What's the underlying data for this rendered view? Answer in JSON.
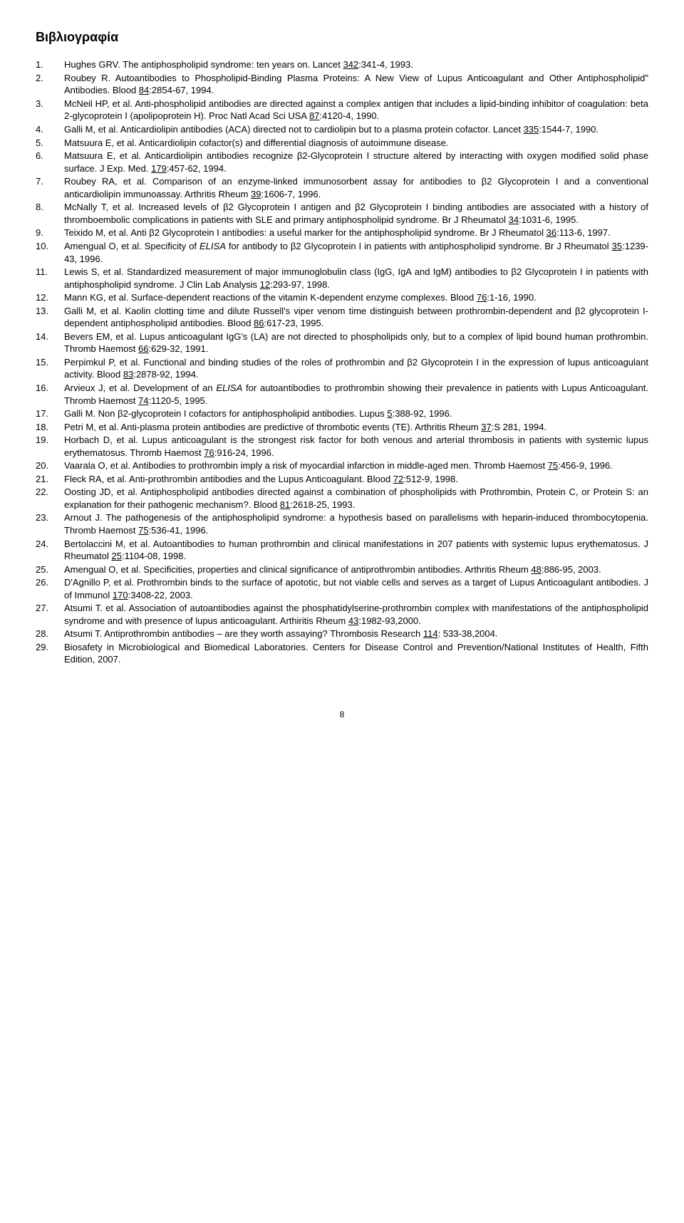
{
  "title": "Βιβλιογραφία",
  "page_number": "8",
  "refs": [
    {
      "n": "1.",
      "segs": [
        {
          "t": "Hughes GRV. The antiphospholipid syndrome: ten years on. Lancet "
        },
        {
          "t": "342",
          "u": true
        },
        {
          "t": ":341-4, 1993."
        }
      ]
    },
    {
      "n": "2.",
      "segs": [
        {
          "t": "Roubey R. Autoantibodies to Phospholipid-Binding Plasma Proteins: A New View of Lupus Anticoagulant and Other Antiphospholipid\" Antibodies. Blood "
        },
        {
          "t": "84",
          "u": true
        },
        {
          "t": ":2854-67, 1994."
        }
      ]
    },
    {
      "n": "3.",
      "segs": [
        {
          "t": "McNeil HP, et al. Anti-phospholipid antibodies are directed against a complex antigen that includes a lipid-binding inhibitor of coagulation: beta 2-glycoprotein I (apolipoprotein H). Proc Natl Acad Sci USA "
        },
        {
          "t": "87",
          "u": true
        },
        {
          "t": ":4120-4, 1990."
        }
      ]
    },
    {
      "n": "4.",
      "segs": [
        {
          "t": "Galli M, et al. Anticardiolipin antibodies (ACA) directed not to cardiolipin but to a plasma protein cofactor. Lancet "
        },
        {
          "t": "335",
          "u": true
        },
        {
          "t": ":1544-7, 1990."
        }
      ]
    },
    {
      "n": "5.",
      "segs": [
        {
          "t": "Matsuura E, et al. Anticardiolipin cofactor(s) and differential diagnosis of autoimmune disease."
        }
      ]
    },
    {
      "n": "6.",
      "segs": [
        {
          "t": "Matsuura E, et al. Anticardiolipin antibodies recognize β2-Glycoprotein I structure altered by interacting with oxygen modified solid phase surface. J Exp. Med. "
        },
        {
          "t": "179",
          "u": true
        },
        {
          "t": ":457-62, 1994."
        }
      ]
    },
    {
      "n": "7.",
      "segs": [
        {
          "t": "Roubey RA, et al. Comparison of an enzyme-linked immunosorbent assay for antibodies to β2 Glycoprotein I and a conventional anticardiolipin immunoassay. Arthritis Rheum "
        },
        {
          "t": "39",
          "u": true
        },
        {
          "t": ":1606-7, 1996."
        }
      ]
    },
    {
      "n": "8.",
      "segs": [
        {
          "t": "McNally T, et al. Increased levels of β2 Glycoprotein I antigen and β2 Glycoprotein I binding antibodies are associated with a history of thromboembolic complications in patients with SLE and primary antiphospholipid syndrome. Br J Rheumatol "
        },
        {
          "t": "34",
          "u": true
        },
        {
          "t": ":1031-6, 1995."
        }
      ]
    },
    {
      "n": "9.",
      "segs": [
        {
          "t": "Teixido M, et al. Anti β2 Glycoprotein I antibodies: a useful marker for the antiphospholipid syndrome. Br J Rheumatol "
        },
        {
          "t": "36",
          "u": true
        },
        {
          "t": ":113-6, 1997."
        }
      ]
    },
    {
      "n": "10.",
      "segs": [
        {
          "t": "Amengual O, et al. Specificity of "
        },
        {
          "t": "ELISA",
          "i": true
        },
        {
          "t": " for antibody to β2 Glycoprotein I in patients with antiphospholipid syndrome. Br J Rheumatol "
        },
        {
          "t": "35",
          "u": true
        },
        {
          "t": ":1239-43, 1996."
        }
      ]
    },
    {
      "n": "11.",
      "segs": [
        {
          "t": "Lewis S, et al. Standardized measurement of major immunoglobulin class (IgG, IgA and IgM) antibodies to β2 Glycoprotein I in patients with antiphospholipid syndrome. J Clin Lab Analysis "
        },
        {
          "t": "12",
          "u": true
        },
        {
          "t": ":293-97, 1998."
        }
      ]
    },
    {
      "n": "12.",
      "segs": [
        {
          "t": "Mann KG, et al. Surface-dependent reactions of the vitamin K-dependent enzyme complexes. Blood "
        },
        {
          "t": "76",
          "u": true
        },
        {
          "t": ":1-16, 1990."
        }
      ]
    },
    {
      "n": "13.",
      "segs": [
        {
          "t": "Galli M, et al. Kaolin clotting time and dilute Russell's viper venom time distinguish between prothrombin-dependent and β2 glycoprotein I-dependent antiphospholipid antibodies. Blood "
        },
        {
          "t": "86",
          "u": true
        },
        {
          "t": ":617-23, 1995."
        }
      ]
    },
    {
      "n": "14.",
      "segs": [
        {
          "t": "Bevers EM, et al. Lupus anticoagulant IgG's (LA) are not directed to phospholipids only, but to a complex of lipid bound human prothrombin. Thromb Haemost "
        },
        {
          "t": "66",
          "u": true
        },
        {
          "t": ":629-32, 1991."
        }
      ]
    },
    {
      "n": "15.",
      "segs": [
        {
          "t": "Perpimkul P, et al. Functional and binding studies of the roles of prothrombin and β2 Glycoprotein I in the expression of lupus anticoagulant activity. Blood "
        },
        {
          "t": "83",
          "u": true
        },
        {
          "t": ":2878-92, 1994."
        }
      ]
    },
    {
      "n": "16.",
      "segs": [
        {
          "t": "Arvieux J, et al. Development of an "
        },
        {
          "t": "ELISA",
          "i": true
        },
        {
          "t": " for autoantibodies to prothrombin showing their prevalence in patients with Lupus Anticoagulant. Thromb Haemost "
        },
        {
          "t": "74",
          "u": true
        },
        {
          "t": ":1120-5, 1995."
        }
      ]
    },
    {
      "n": "17.",
      "segs": [
        {
          "t": "Galli M. Non β2-glycoprotein I cofactors for antiphospholipid antibodies. Lupus "
        },
        {
          "t": "5",
          "u": true
        },
        {
          "t": ":388-92, 1996."
        }
      ]
    },
    {
      "n": "18.",
      "segs": [
        {
          "t": "Petri M, et al. Anti-plasma protein antibodies are predictive of thrombotic events (TE). Arthritis Rheum "
        },
        {
          "t": "37",
          "u": true
        },
        {
          "t": ":S 281, 1994."
        }
      ]
    },
    {
      "n": "19.",
      "segs": [
        {
          "t": "Horbach D, et al. Lupus anticoagulant is the strongest risk factor for both venous and arterial thrombosis in patients with systemic lupus erythematosus. Thromb Haemost "
        },
        {
          "t": "76",
          "u": true
        },
        {
          "t": ":916-24, 1996."
        }
      ]
    },
    {
      "n": "20.",
      "segs": [
        {
          "t": "Vaarala O, et al. Antibodies to prothrombin imply a risk of myocardial infarction in middle-aged men. Thromb Haemost "
        },
        {
          "t": "75",
          "u": true
        },
        {
          "t": ":456-9, 1996."
        }
      ]
    },
    {
      "n": "21.",
      "segs": [
        {
          "t": "Fleck RA, et al. Anti-prothrombin antibodies and the Lupus Anticoagulant. Blood "
        },
        {
          "t": "72",
          "u": true
        },
        {
          "t": ":512-9, 1998."
        }
      ]
    },
    {
      "n": "22.",
      "segs": [
        {
          "t": "Oosting JD, et al. Antiphospholipid antibodies directed against a combination of phospholipids with Prothrombin, Protein C, or Protein S: an explanation for their pathogenic mechanism?. Blood "
        },
        {
          "t": "81",
          "u": true
        },
        {
          "t": ":2618-25, 1993."
        }
      ]
    },
    {
      "n": "23.",
      "segs": [
        {
          "t": "Arnout J. The pathogenesis of the antiphospholipid syndrome: a hypothesis based on parallelisms with heparin-induced thrombocytopenia. Thromb Haemost "
        },
        {
          "t": "75",
          "u": true
        },
        {
          "t": ":536-41, 1996."
        }
      ]
    },
    {
      "n": "24.",
      "segs": [
        {
          "t": "Bertolaccini M, et al. Autoantibodies to human prothrombin and clinical manifestations in 207 patients with systemic lupus erythematosus. J Rheumatol "
        },
        {
          "t": "25",
          "u": true
        },
        {
          "t": ":1104-08, 1998."
        }
      ]
    },
    {
      "n": "25.",
      "segs": [
        {
          "t": "Amengual O, et al. Specificities, properties and clinical significance of antiprothrombin antibodies. Arthritis Rheum "
        },
        {
          "t": "48",
          "u": true
        },
        {
          "t": ":886-95, 2003."
        }
      ]
    },
    {
      "n": "26.",
      "segs": [
        {
          "t": "D'Agnillo P, et al. Prothrombin binds to the surface of apototic, but not viable cells and serves as a target of Lupus Anticoagulant antibodies. J of Immunol "
        },
        {
          "t": "170",
          "u": true
        },
        {
          "t": ":3408-22, 2003."
        }
      ]
    },
    {
      "n": "27.",
      "segs": [
        {
          "t": "Atsumi T. et al. Association of autoantibodies against the phosphatidylserine-prothrombin complex with manifestations of the antiphospholipid syndrome and with presence of lupus anticoagulant. Arthiritis Rheum "
        },
        {
          "t": "43",
          "u": true
        },
        {
          "t": ":1982-93,2000."
        }
      ]
    },
    {
      "n": "28.",
      "segs": [
        {
          "t": "Atsumi T. Antiprothrombin antibodies – are they worth assaying? Thrombosis Research "
        },
        {
          "t": "114",
          "u": true
        },
        {
          "t": ": 533-38,2004."
        }
      ]
    },
    {
      "n": "29.",
      "segs": [
        {
          "t": "Biosafety in Microbiological and Biomedical Laboratories.  Centers for Disease Control and Prevention/National Institutes of Health, Fifth Edition, 2007."
        }
      ]
    }
  ]
}
